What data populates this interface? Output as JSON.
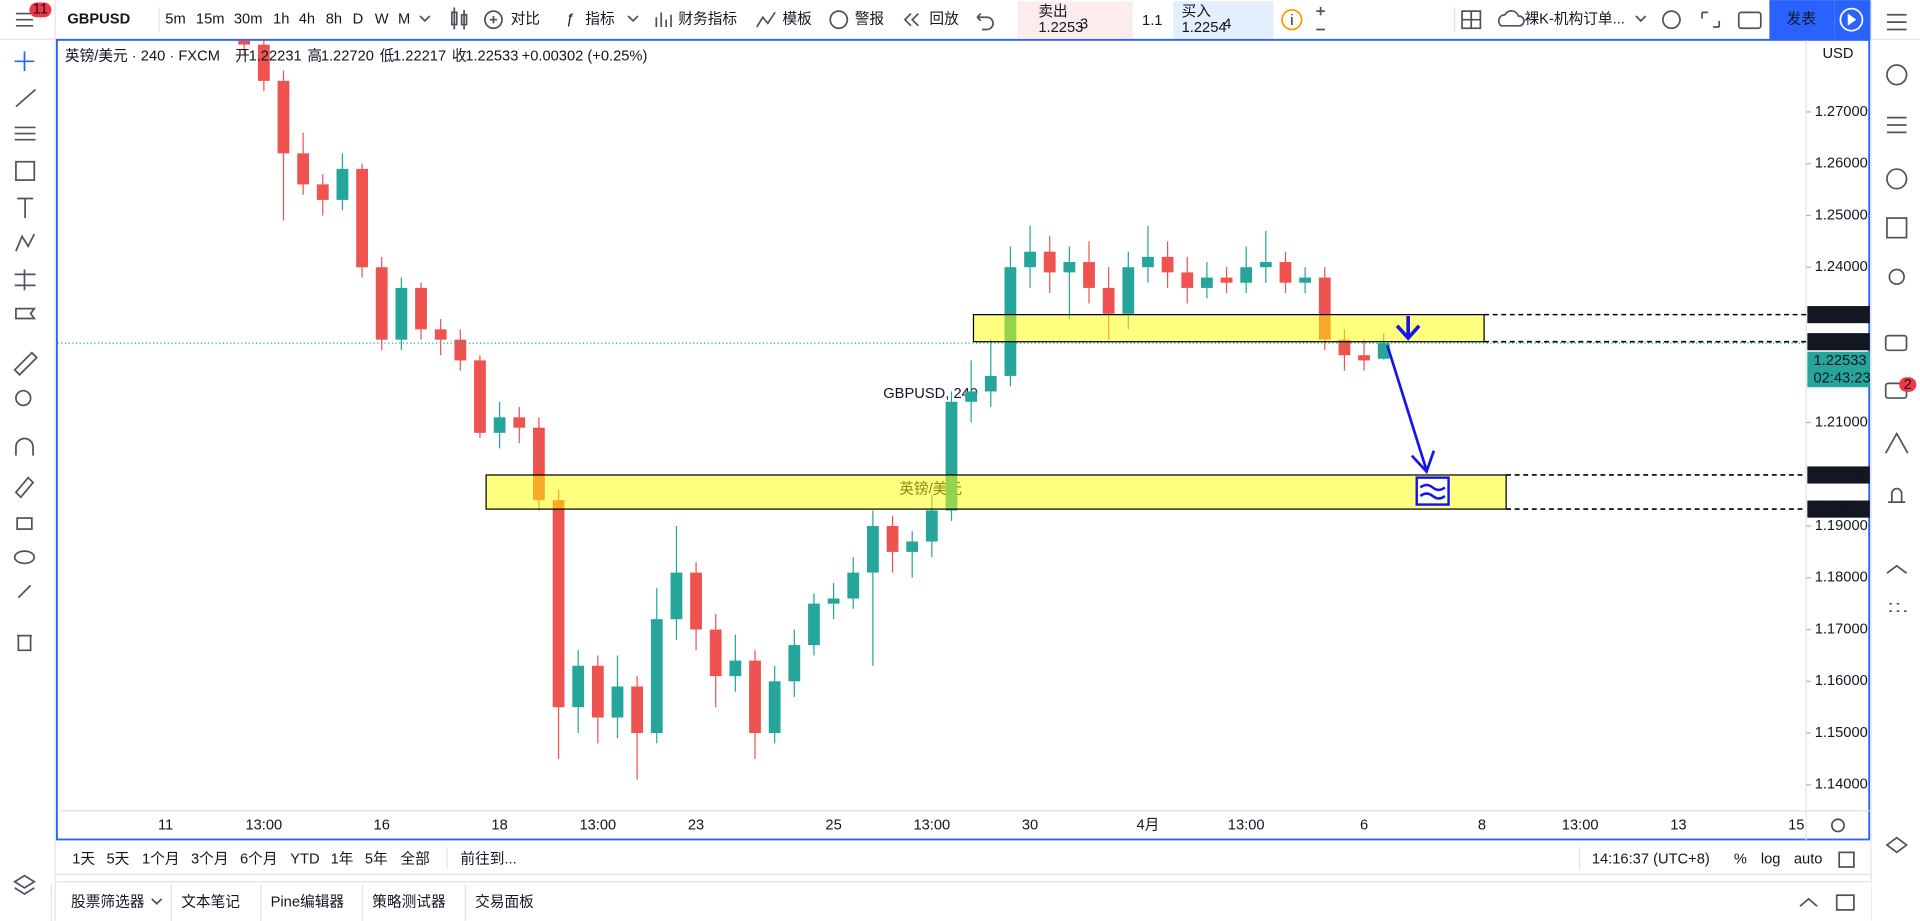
{
  "toolbar": {
    "symbol": "GBPUSD",
    "badge": "11",
    "intervals": [
      "5m",
      "15m",
      "30m",
      "1h",
      "4h",
      "8h",
      "D",
      "W",
      "M"
    ],
    "active_interval": "4h",
    "buttons": [
      "对比",
      "指标",
      "财务指标",
      "模板",
      "警报",
      "回放"
    ],
    "sell": {
      "label": "卖出",
      "price": "1.2253",
      "pip": "3"
    },
    "spread": "1.1",
    "buy": {
      "label": "买入",
      "price": "1.2254",
      "pip": "4"
    },
    "layout": "裸K-机构订单...",
    "publish": "发表"
  },
  "chart_data": {
    "type": "candlestick",
    "legend": {
      "symbol": "英镑/美元 · 240 · FXCM",
      "items": [
        {
          "label": "开",
          "value": "1.22231"
        },
        {
          "label": "高",
          "value": "1.22720"
        },
        {
          "label": "低",
          "value": "1.22217"
        },
        {
          "label": "收",
          "value": "1.22533"
        }
      ],
      "change": "+0.00302 (+0.25%)"
    },
    "watermark": [
      "GBPUSD, 240",
      "英镑/美元"
    ],
    "currency": "USD",
    "up_color": "#26a69a",
    "down_color": "#ef5350",
    "categories": [
      null,
      null,
      null,
      null,
      null,
      "11",
      null,
      null,
      null,
      null,
      "13:00",
      null,
      null,
      null,
      null,
      null,
      "16",
      null,
      null,
      null,
      null,
      null,
      "18",
      null,
      null,
      null,
      null,
      "13:00",
      null,
      null,
      null,
      null,
      "23",
      null,
      null,
      null,
      null,
      null,
      null,
      "25",
      null,
      null,
      null,
      null,
      "13:00",
      null,
      null,
      null,
      null,
      "30",
      null,
      null,
      null,
      null,
      null,
      "4月",
      null,
      null,
      null,
      null,
      "13:00",
      null,
      null,
      null,
      null,
      null,
      "6",
      null,
      null,
      null,
      null,
      null,
      "8",
      null,
      null,
      null,
      null,
      "13:00",
      null,
      null,
      null,
      null,
      "13",
      null,
      null,
      null,
      null,
      null,
      "15"
    ],
    "ohlc": [
      null,
      null,
      null,
      null,
      null,
      null,
      null,
      null,
      null,
      [
        1.287,
        1.289,
        1.281,
        1.283
      ],
      [
        1.283,
        1.285,
        1.274,
        1.276
      ],
      [
        1.276,
        1.278,
        1.249,
        1.262
      ],
      [
        1.262,
        1.266,
        1.254,
        1.256
      ],
      [
        1.256,
        1.258,
        1.25,
        1.253
      ],
      [
        1.253,
        1.262,
        1.251,
        1.259
      ],
      [
        1.259,
        1.26,
        1.238,
        1.24
      ],
      [
        1.24,
        1.242,
        1.224,
        1.226
      ],
      [
        1.226,
        1.238,
        1.224,
        1.236
      ],
      [
        1.236,
        1.237,
        1.226,
        1.228
      ],
      [
        1.228,
        1.23,
        1.223,
        1.226
      ],
      [
        1.226,
        1.228,
        1.22,
        1.222
      ],
      [
        1.222,
        1.223,
        1.207,
        1.208
      ],
      [
        1.208,
        1.214,
        1.205,
        1.211
      ],
      [
        1.211,
        1.213,
        1.206,
        1.209
      ],
      [
        1.209,
        1.211,
        1.193,
        1.195
      ],
      [
        1.195,
        1.197,
        1.145,
        1.155
      ],
      [
        1.155,
        1.166,
        1.15,
        1.163
      ],
      [
        1.163,
        1.165,
        1.148,
        1.153
      ],
      [
        1.153,
        1.165,
        1.149,
        1.159
      ],
      [
        1.159,
        1.161,
        1.141,
        1.15
      ],
      [
        1.15,
        1.178,
        1.148,
        1.172
      ],
      [
        1.172,
        1.19,
        1.168,
        1.181
      ],
      [
        1.181,
        1.183,
        1.166,
        1.17
      ],
      [
        1.17,
        1.173,
        1.155,
        1.161
      ],
      [
        1.161,
        1.169,
        1.158,
        1.164
      ],
      [
        1.164,
        1.166,
        1.145,
        1.15
      ],
      [
        1.15,
        1.163,
        1.148,
        1.16
      ],
      [
        1.16,
        1.17,
        1.157,
        1.167
      ],
      [
        1.167,
        1.177,
        1.165,
        1.175
      ],
      [
        1.175,
        1.179,
        1.172,
        1.176
      ],
      [
        1.176,
        1.184,
        1.174,
        1.181
      ],
      [
        1.181,
        1.193,
        1.163,
        1.19
      ],
      [
        1.19,
        1.192,
        1.181,
        1.185
      ],
      [
        1.185,
        1.189,
        1.18,
        1.187
      ],
      [
        1.187,
        1.196,
        1.184,
        1.193
      ],
      [
        1.193,
        1.216,
        1.191,
        1.214
      ],
      [
        1.214,
        1.222,
        1.21,
        1.216
      ],
      [
        1.216,
        1.226,
        1.213,
        1.219
      ],
      [
        1.219,
        1.244,
        1.217,
        1.24
      ],
      [
        1.24,
        1.248,
        1.236,
        1.243
      ],
      [
        1.243,
        1.246,
        1.235,
        1.239
      ],
      [
        1.239,
        1.244,
        1.23,
        1.241
      ],
      [
        1.241,
        1.245,
        1.233,
        1.236
      ],
      [
        1.236,
        1.24,
        1.226,
        1.231
      ],
      [
        1.231,
        1.243,
        1.228,
        1.24
      ],
      [
        1.24,
        1.248,
        1.237,
        1.242
      ],
      [
        1.242,
        1.245,
        1.236,
        1.239
      ],
      [
        1.239,
        1.242,
        1.233,
        1.236
      ],
      [
        1.236,
        1.241,
        1.234,
        1.238
      ],
      [
        1.238,
        1.24,
        1.235,
        1.237
      ],
      [
        1.237,
        1.244,
        1.235,
        1.24
      ],
      [
        1.24,
        1.247,
        1.237,
        1.241
      ],
      [
        1.241,
        1.243,
        1.235,
        1.237
      ],
      [
        1.237,
        1.24,
        1.235,
        1.238
      ],
      [
        1.238,
        1.24,
        1.224,
        1.226
      ],
      [
        1.226,
        1.228,
        1.22,
        1.223
      ],
      [
        1.223,
        1.226,
        1.22,
        1.222
      ],
      [
        1.22231,
        1.2272,
        1.22217,
        1.22533
      ],
      null,
      null,
      null,
      null,
      null,
      null,
      null,
      null,
      null,
      null,
      null,
      null,
      null,
      null,
      null,
      null,
      null,
      null,
      null,
      null,
      null
    ],
    "ylim": [
      1.135,
      1.2838
    ],
    "yticks": [
      {
        "value": 1.14,
        "label": "1.14000"
      },
      {
        "value": 1.15,
        "label": "1.15000"
      },
      {
        "value": 1.16,
        "label": "1.16000"
      },
      {
        "value": 1.17,
        "label": "1.17000"
      },
      {
        "value": 1.18,
        "label": "1.18000"
      },
      {
        "value": 1.19,
        "label": "1.19000"
      },
      {
        "value": 1.21,
        "label": "1.21000"
      },
      {
        "value": 1.24,
        "label": "1.24000"
      },
      {
        "value": 1.25,
        "label": "1.25000"
      },
      {
        "value": 1.26,
        "label": "1.26000"
      },
      {
        "value": 1.27,
        "label": "1.27000"
      }
    ],
    "zones": [
      {
        "top": 1.23084,
        "bottom": 1.22561,
        "color": "#ffff00"
      },
      {
        "top": 1.19986,
        "bottom": 1.19327,
        "color": "#ffff00"
      }
    ],
    "countdown": "02:43:23",
    "grid": false
  },
  "bottom": {
    "ranges": [
      "1天",
      "5天",
      "1个月",
      "3个月",
      "6个月",
      "YTD",
      "1年",
      "5年",
      "全部"
    ],
    "goto": "前往到...",
    "clock": "14:16:37 (UTC+8)",
    "scale_buttons": [
      "%",
      "log",
      "auto"
    ],
    "tabs": [
      "股票筛选器",
      "文本笔记",
      "Pine编辑器",
      "策略测试器",
      "交易面板"
    ]
  },
  "sidebar": {
    "badge": "2"
  }
}
